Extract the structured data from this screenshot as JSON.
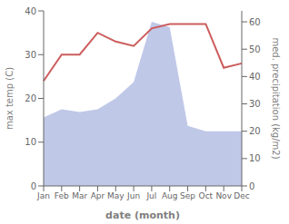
{
  "chart_data": {
    "type": "line",
    "categories": [
      "Jan",
      "Feb",
      "Mar",
      "Apr",
      "May",
      "Jun",
      "Jul",
      "Aug",
      "Sep",
      "Oct",
      "Nov",
      "Dec"
    ],
    "xlabel": "date (month)",
    "ylabel": "max temp (C)",
    "y2label": "med. precipitation (kg/m2)",
    "ylim": [
      0,
      40
    ],
    "yticks": [
      0,
      10,
      20,
      30,
      40
    ],
    "y2lim": [
      0,
      64
    ],
    "y2ticks": [
      0,
      10,
      20,
      30,
      40,
      50,
      60
    ],
    "series": [
      {
        "type": "area",
        "axis": "y2",
        "color": "#c0c8e8",
        "values": [
          25,
          28,
          27,
          28,
          32,
          38,
          60,
          58,
          22,
          20,
          20,
          20
        ]
      },
      {
        "type": "line",
        "color": "#cd5c5c",
        "values": [
          24,
          30,
          30,
          35,
          33,
          32,
          36,
          37,
          37,
          37,
          27,
          28
        ]
      }
    ]
  }
}
